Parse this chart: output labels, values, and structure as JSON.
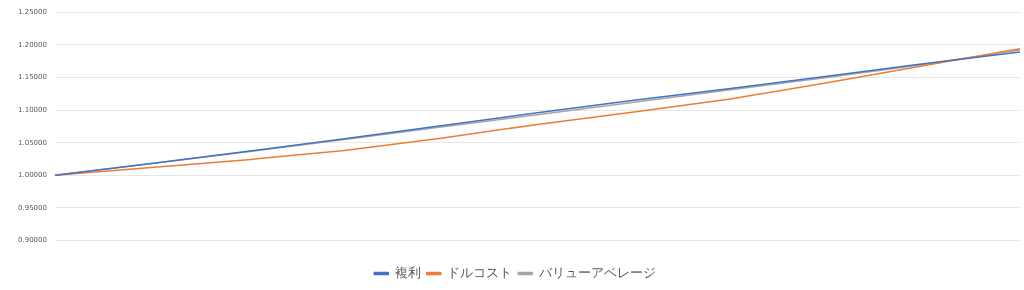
{
  "chart_data": {
    "type": "line",
    "categories": [
      null,
      null,
      null,
      null,
      null,
      null,
      null,
      null,
      null,
      null,
      null
    ],
    "series": [
      {
        "name": "複利",
        "color": "#4472c4",
        "values": [
          1.0,
          1.018,
          1.037,
          1.056,
          1.076,
          1.096,
          1.115,
          1.133,
          1.152,
          1.171,
          1.189
        ]
      },
      {
        "name": "ドルコスト",
        "color": "#ed7d31",
        "values": [
          1.0,
          1.012,
          1.024,
          1.038,
          1.057,
          1.078,
          1.097,
          1.117,
          1.142,
          1.168,
          1.194
        ]
      },
      {
        "name": "バリューアベレージ",
        "color": "#a5a5a5",
        "values": [
          1.0,
          1.018,
          1.036,
          1.055,
          1.074,
          1.093,
          1.112,
          1.131,
          1.15,
          1.17,
          1.192
        ]
      }
    ],
    "ylim": [
      0.9,
      1.25
    ],
    "yticks": [
      {
        "value": 0.9,
        "label": "0.90000"
      },
      {
        "value": 0.95,
        "label": "0.95000"
      },
      {
        "value": 1.0,
        "label": "1.00000"
      },
      {
        "value": 1.05,
        "label": "1.05000"
      },
      {
        "value": 1.1,
        "label": "1.10000"
      },
      {
        "value": 1.15,
        "label": "1.15000"
      },
      {
        "value": 1.2,
        "label": "1.20000"
      },
      {
        "value": 1.25,
        "label": "1.25000"
      }
    ],
    "grid": "y",
    "legend": "bottom",
    "marker": "none",
    "line_style": "solid"
  }
}
